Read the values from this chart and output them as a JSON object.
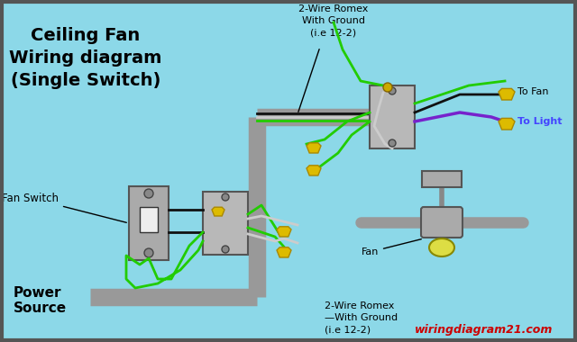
{
  "bg_color": "#8cd8e8",
  "title_lines": [
    "Ceiling Fan",
    "Wiring diagram",
    "(Single Switch)"
  ],
  "title_fontsize": 14,
  "label_fontsize": 8,
  "small_fontsize": 7.5,
  "romex_top_label": "2-Wire Romex\nWith Ground\n(i.e 12-2)",
  "romex_bottom_label": "2-Wire Romex\n—With Ground\n(i.e 12-2)",
  "fan_switch_label": "Fan Switch",
  "power_source_label": "Power\nSource",
  "to_fan_label": "To Fan",
  "to_light_label": "To Light",
  "fan_label": "Fan",
  "watermark": "wiringdiagram21.com",
  "watermark_color": "#cc0000",
  "wire_green": "#22cc00",
  "wire_black": "#111111",
  "wire_white": "#cccccc",
  "wire_blue": "#4444ff",
  "wire_purple": "#7722cc",
  "conduit_color": "#999999",
  "switch_color": "#aaaaaa",
  "junction_color": "#b8b8b8",
  "connector_color": "#ddbb00",
  "fan_body_color": "#aaaaaa",
  "border_color": "#555555"
}
